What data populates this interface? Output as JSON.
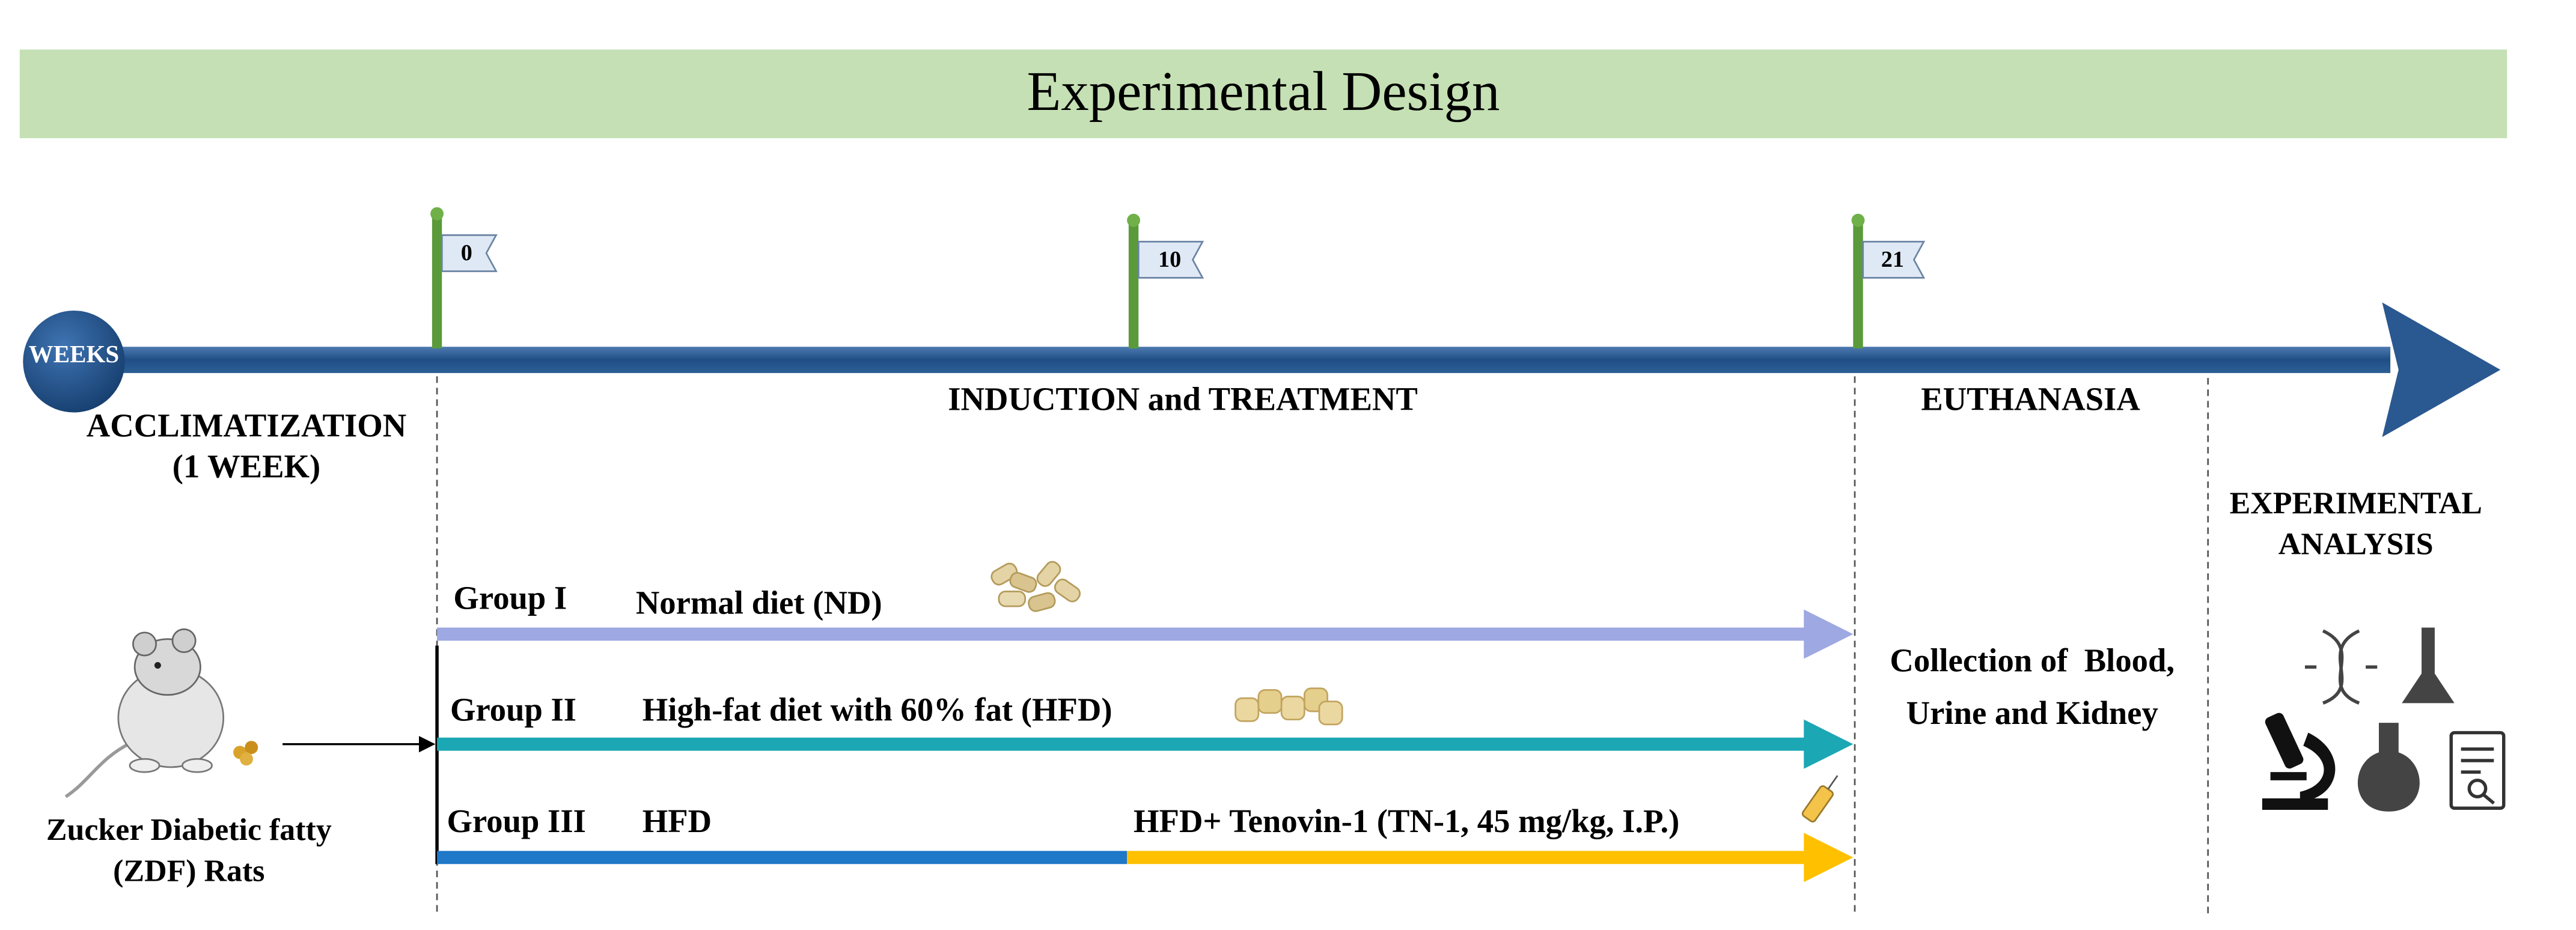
{
  "header": {
    "title": "Experimental Design"
  },
  "timeline": {
    "label": "WEEKS",
    "milestones": [
      "0",
      "10",
      "21"
    ]
  },
  "phases": {
    "acclimatization": [
      "ACCLIMATIZATION",
      "(1 WEEK)"
    ],
    "induction": "INDUCTION and TREATMENT",
    "euthanasia": "EUTHANASIA",
    "analysis": [
      "EXPERIMENTAL",
      "ANALYSIS"
    ]
  },
  "animals": [
    "Zucker Diabetic fatty",
    "(ZDF) Rats"
  ],
  "groups": [
    {
      "name": "Group I",
      "diet": "Normal diet (ND)"
    },
    {
      "name": "Group II",
      "diet": "High-fat diet with 60% fat (HFD)"
    },
    {
      "name": "Group III",
      "diet": "HFD",
      "treatment": "HFD+ Tenovin-1 (TN-1, 45 mg/kg, I.P.)"
    }
  ],
  "collection": [
    "Collection of  Blood,",
    "Urine and Kidney"
  ]
}
